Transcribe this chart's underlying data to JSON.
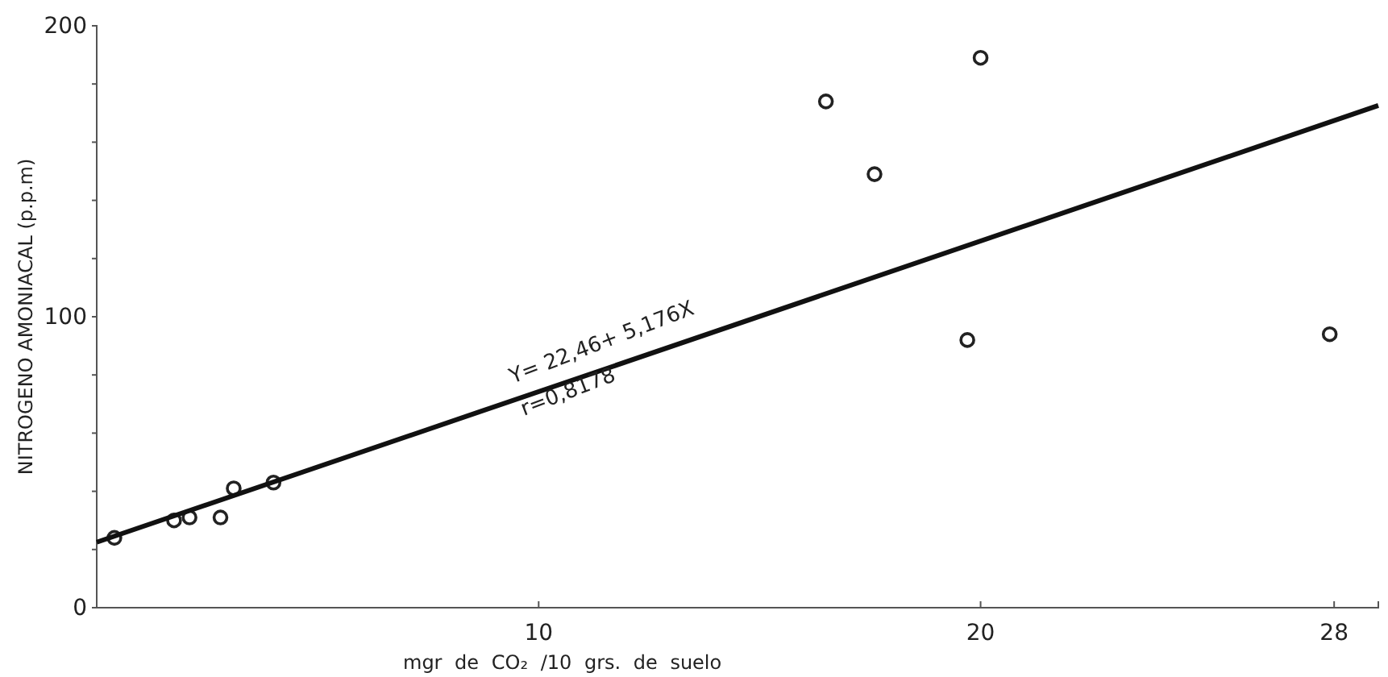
{
  "chart_data": {
    "type": "scatter",
    "xlabel": "mgr de CO₂ /10 grs. de suelo",
    "ylabel": "NITROGENO AMONIACAL (p.p.m)",
    "xlim": [
      0,
      29
    ],
    "xticks": [
      10,
      20,
      28
    ],
    "ylim": [
      0,
      200
    ],
    "yticks": [
      0,
      {
        "value": 20,
        "label": null
      },
      {
        "value": 40,
        "label": null
      },
      {
        "value": 60,
        "label": null
      },
      {
        "value": 80,
        "label": null
      },
      100,
      {
        "value": 120,
        "label": null
      },
      {
        "value": 140,
        "label": null
      },
      {
        "value": 160,
        "label": null
      },
      {
        "value": 180,
        "label": null
      },
      200
    ],
    "grid": false,
    "marker": "circle",
    "series": [
      {
        "color": "#222222",
        "x": [
          0.4,
          1.75,
          2.1,
          2.8,
          3.1,
          4.0,
          16.5,
          17.6,
          19.7,
          20.0,
          27.9
        ],
        "values": [
          24,
          30,
          31,
          31,
          41,
          43,
          174,
          149,
          92,
          189,
          94
        ]
      },
      {
        "type": "line",
        "color": "#111111",
        "line_style": "solid",
        "marker": "none",
        "x": [
          0,
          29
        ],
        "values": [
          22.5,
          172.6
        ]
      }
    ],
    "annotations": [
      "Y= 22,46+ 5,176X",
      "r=0,8178"
    ]
  }
}
